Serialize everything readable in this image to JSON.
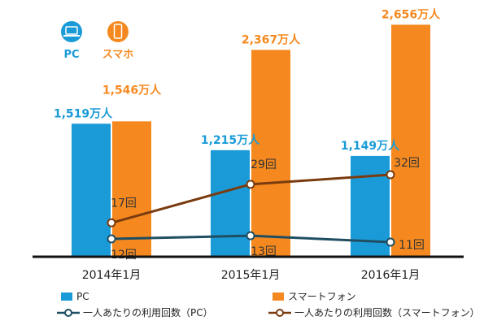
{
  "icons": {
    "pc_label": "PC",
    "sp_label": "スマホ",
    "pc_icon": "laptop-icon",
    "sp_icon": "smartphone-icon"
  },
  "colors": {
    "pc": "#1a9bd7",
    "smartphone": "#f5891f",
    "pc_line": "#1f4e62",
    "sp_line": "#7a3b0f"
  },
  "legend": {
    "pc": "PC",
    "smartphone": "スマートフォン",
    "pc_line": "一人あたりの利用回数（PC）",
    "sp_line": "一人あたりの利用回数（スマートフォン）"
  },
  "chart_data": {
    "type": "bar",
    "categories": [
      "2014年1月",
      "2015年1月",
      "2016年1月"
    ],
    "series": [
      {
        "name": "PC",
        "kind": "bar",
        "values": [
          1519,
          1215,
          1149
        ],
        "labels": [
          "1,519万人",
          "1,215万人",
          "1,149万人"
        ]
      },
      {
        "name": "スマートフォン",
        "kind": "bar",
        "values": [
          1546,
          2367,
          2656
        ],
        "labels": [
          "1,546万人",
          "2,367万人",
          "2,656万人"
        ]
      },
      {
        "name": "一人あたりの利用回数（PC）",
        "kind": "line",
        "values": [
          12,
          13,
          11
        ],
        "labels": [
          "12回",
          "13回",
          "11回"
        ]
      },
      {
        "name": "一人あたりの利用回数（スマートフォン）",
        "kind": "line",
        "values": [
          17,
          29,
          32
        ],
        "labels": [
          "17回",
          "29回",
          "32回"
        ]
      }
    ],
    "bar_ylim": [
      0,
      2800
    ],
    "grid": false
  }
}
